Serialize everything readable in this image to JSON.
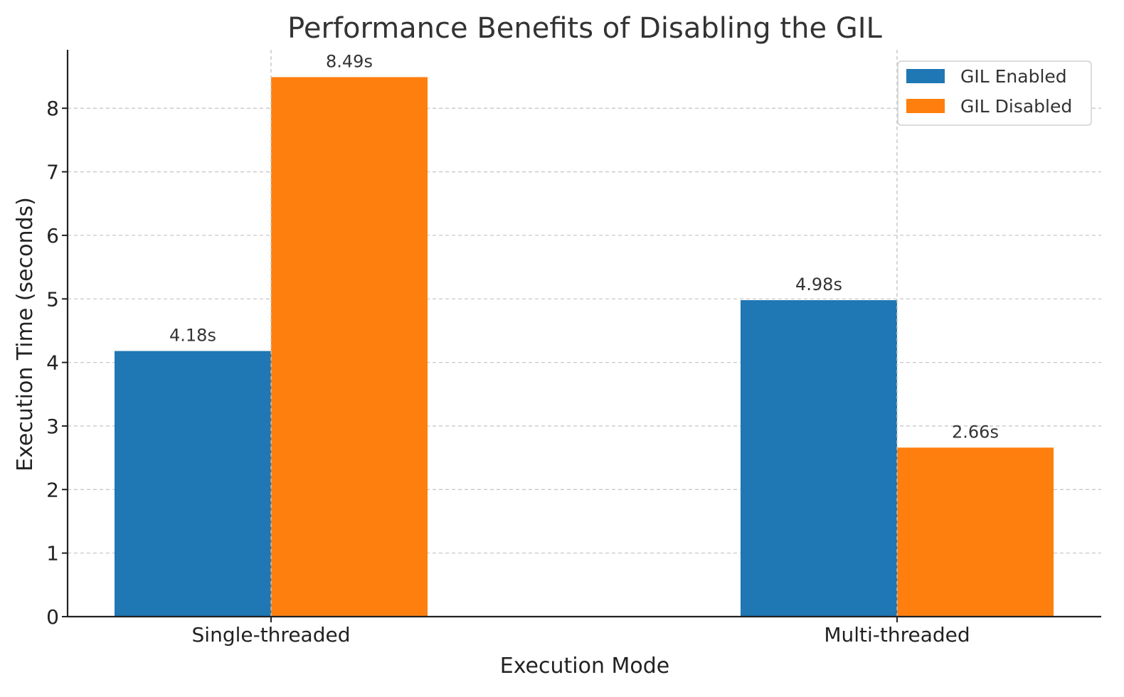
{
  "chart_data": {
    "type": "bar",
    "title": "Performance Benefits of Disabling the GIL",
    "xlabel": "Execution Mode",
    "ylabel": "Execution Time (seconds)",
    "categories": [
      "Single-threaded",
      "Multi-threaded"
    ],
    "series": [
      {
        "name": "GIL Enabled",
        "values": [
          4.18,
          4.98
        ],
        "color": "#1f77b4",
        "labels": [
          "4.18s",
          "4.98s"
        ]
      },
      {
        "name": "GIL Disabled",
        "values": [
          8.49,
          2.66
        ],
        "color": "#ff7f0e",
        "labels": [
          "8.49s",
          "2.66s"
        ]
      }
    ],
    "ylim": [
      0,
      8.92
    ],
    "yticks": [
      0,
      1,
      2,
      3,
      4,
      5,
      6,
      7,
      8
    ],
    "grid": true,
    "legend_position": "top-right"
  }
}
